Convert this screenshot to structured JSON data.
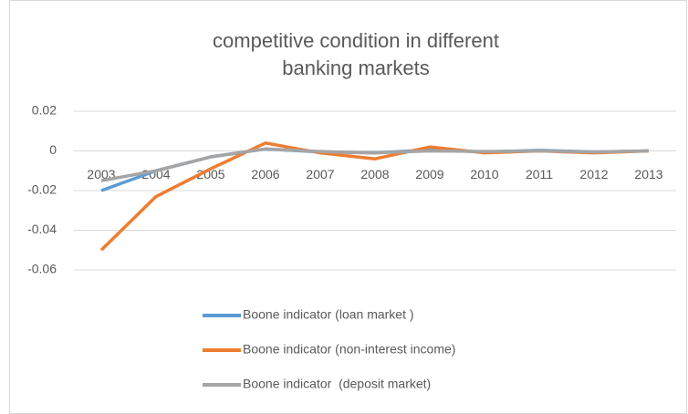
{
  "chart_data": {
    "type": "line",
    "title": "competitive condition in different banking markets",
    "categories": [
      "2003",
      "2004",
      "2005",
      "2006",
      "2007",
      "2008",
      "2009",
      "2010",
      "2011",
      "2012",
      "2013"
    ],
    "series": [
      {
        "name": "Boone indicator (loan market )",
        "color": "#5b9bd5",
        "values": [
          -0.02,
          -0.01,
          -0.003,
          0.001,
          -0.0005,
          -0.001,
          0.0005,
          -0.0005,
          0.0003,
          -0.0005,
          0
        ]
      },
      {
        "name": "Boone indicator (non-interest income)",
        "color": "#ed7d31",
        "values": [
          -0.05,
          -0.023,
          -0.009,
          0.004,
          -0.001,
          -0.004,
          0.002,
          -0.001,
          0,
          -0.001,
          0
        ]
      },
      {
        "name": "Boone indicator  (deposit market)",
        "color": "#a5a5a5",
        "values": [
          -0.015,
          -0.01,
          -0.003,
          0.001,
          -0.0003,
          -0.001,
          0,
          -0.0003,
          0,
          -0.0005,
          0
        ]
      }
    ],
    "ylim": [
      -0.06,
      0.02
    ],
    "yticks": [
      0.02,
      0,
      -0.02,
      -0.04,
      -0.06
    ],
    "grid": true,
    "legend": "bottom"
  }
}
